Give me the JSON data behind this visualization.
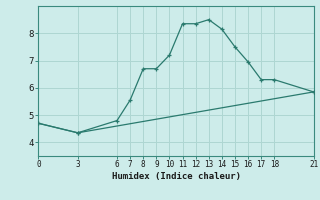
{
  "xlabel": "Humidex (Indice chaleur)",
  "background_color": "#cdecea",
  "grid_color": "#aed6d2",
  "line_color": "#2a7a6e",
  "spine_color": "#3a8a7e",
  "xlim": [
    0,
    21
  ],
  "ylim": [
    3.5,
    9.0
  ],
  "x_ticks": [
    0,
    3,
    6,
    7,
    8,
    9,
    10,
    11,
    12,
    13,
    14,
    15,
    16,
    17,
    18,
    21
  ],
  "y_ticks": [
    4,
    5,
    6,
    7,
    8
  ],
  "line1_x": [
    0,
    3,
    6,
    7,
    8,
    9,
    10,
    11,
    12,
    13,
    14,
    15,
    16,
    17,
    18,
    21
  ],
  "line1_y": [
    4.7,
    4.35,
    4.8,
    5.55,
    6.7,
    6.7,
    7.2,
    8.35,
    8.35,
    8.5,
    8.15,
    7.5,
    6.95,
    6.3,
    6.3,
    5.85
  ],
  "line2_x": [
    0,
    3,
    21
  ],
  "line2_y": [
    4.7,
    4.35,
    5.85
  ]
}
